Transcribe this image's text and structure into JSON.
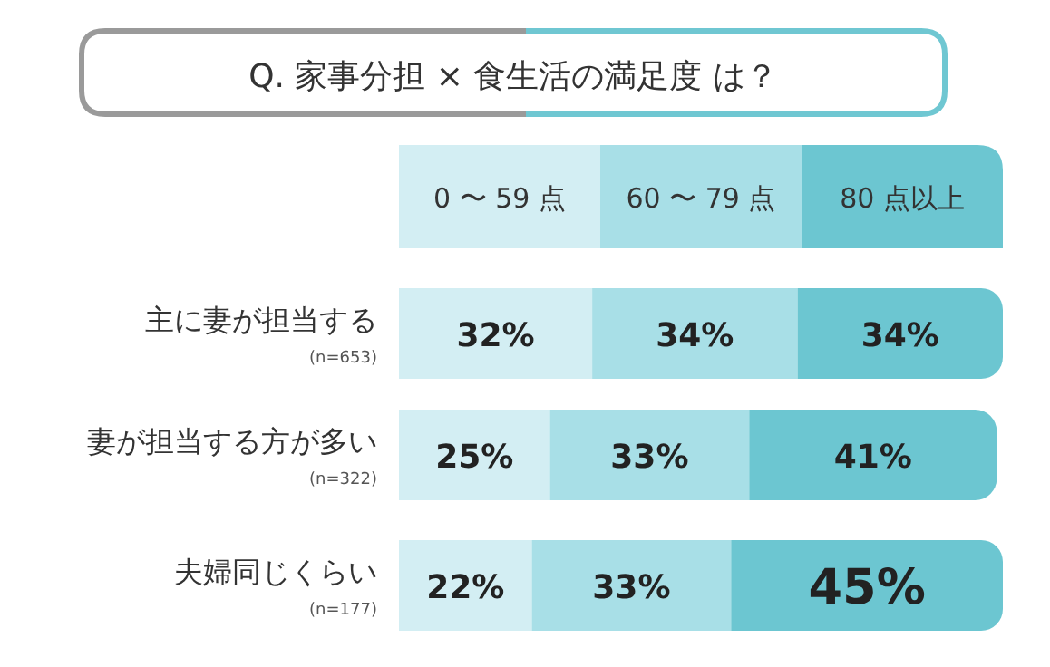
{
  "chart_data": {
    "type": "bar",
    "orientation": "horizontal",
    "stacked": true,
    "title": "Q. 家事分担 × 食生活の満足度 は？",
    "categories": [
      "主に妻が担当する",
      "妻が担当する方が多い",
      "夫婦同じくらい"
    ],
    "annotations": [
      "(n=653)",
      "(n=322)",
      "(n=177)"
    ],
    "series": [
      {
        "name": "0 〜 59 点",
        "color": "#d3eef3",
        "values": [
          32,
          25,
          22
        ],
        "value_labels": [
          "32%",
          "25%",
          "22%"
        ]
      },
      {
        "name": "60 〜 79 点",
        "color": "#a8dfe7",
        "values": [
          34,
          33,
          33
        ],
        "value_labels": [
          "34%",
          "33%",
          "33%"
        ]
      },
      {
        "name": "80 点以上",
        "color": "#6cc6d1",
        "values": [
          34,
          41,
          45
        ],
        "value_labels": [
          "34%",
          "41%",
          "45%"
        ]
      }
    ],
    "legend": "top",
    "grid": false
  }
}
